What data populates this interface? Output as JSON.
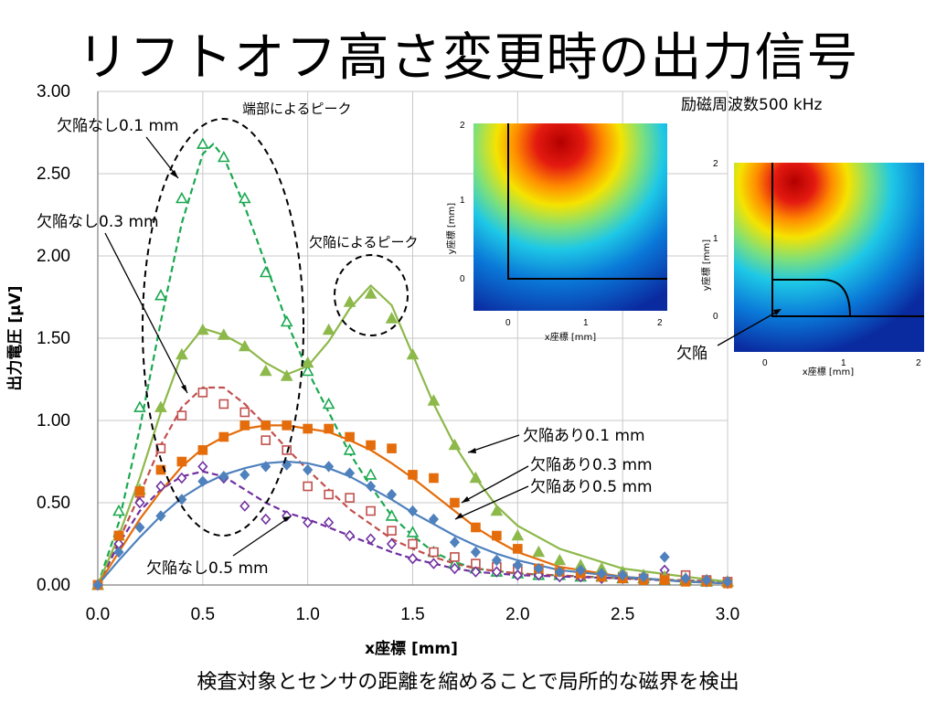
{
  "title": "リフトオフ高さ変更時の出力信号",
  "caption": "検査対象とセンサの距離を縮めることで局所的な磁界を検出",
  "freq_label": "励磁周波数500 kHz",
  "annotations": {
    "edge_peak": "端部によるピーク",
    "defect_peak": "欠陥によるピーク",
    "defect": "欠陥"
  },
  "insets": [
    {
      "xlabel": "x座標 [mm]",
      "ylabel": "y座標 [mm]",
      "xticks": [
        "0",
        "1",
        "2"
      ],
      "yticks": [
        "0",
        "1",
        "2"
      ],
      "defect": false
    },
    {
      "xlabel": "x座標 [mm]",
      "ylabel": "y座標 [mm]",
      "xticks": [
        "0",
        "1",
        "2"
      ],
      "yticks": [
        "0",
        "1",
        "2"
      ],
      "defect": true
    }
  ],
  "chart_data": {
    "type": "scatter",
    "xlabel": "x座標 [mm]",
    "ylabel": "出力電圧 [μV]",
    "xlim": [
      0,
      3
    ],
    "ylim": [
      0,
      3
    ],
    "xticks": [
      "0.0",
      "0.5",
      "1.0",
      "1.5",
      "2.0",
      "2.5",
      "3.0"
    ],
    "yticks": [
      "0.00",
      "0.50",
      "1.00",
      "1.50",
      "2.00",
      "2.50",
      "3.00"
    ],
    "grid": true,
    "series": [
      {
        "name": "欠陥なし0.1 mm",
        "marker": "triangle-open",
        "color": "#1aa84f",
        "dash": true,
        "x": [
          0,
          0.1,
          0.2,
          0.3,
          0.4,
          0.5,
          0.6,
          0.7,
          0.8,
          0.9,
          1.0,
          1.1,
          1.2,
          1.3,
          1.4,
          1.5,
          1.6,
          1.7,
          1.8,
          1.9,
          2.0,
          2.1,
          2.2,
          2.3,
          2.4,
          2.5,
          2.6,
          2.7,
          2.8,
          2.9,
          3.0
        ],
        "y": [
          0,
          0.45,
          1.08,
          1.76,
          2.35,
          2.68,
          2.6,
          2.35,
          1.9,
          1.6,
          1.3,
          1.1,
          0.82,
          0.67,
          0.42,
          0.32,
          0.2,
          0.13,
          0.1,
          0.08,
          0.07,
          0.06,
          0.06,
          0.05,
          0.05,
          0.04,
          0.04,
          0.03,
          0.03,
          0.02,
          0.02
        ],
        "fit": [
          [
            0,
            0
          ],
          [
            0.1,
            0.38
          ],
          [
            0.2,
            0.95
          ],
          [
            0.3,
            1.6
          ],
          [
            0.4,
            2.2
          ],
          [
            0.5,
            2.62
          ],
          [
            0.55,
            2.68
          ],
          [
            0.6,
            2.6
          ],
          [
            0.7,
            2.3
          ],
          [
            0.8,
            1.95
          ],
          [
            0.9,
            1.6
          ],
          [
            1.0,
            1.3
          ],
          [
            1.1,
            1.05
          ],
          [
            1.2,
            0.8
          ],
          [
            1.3,
            0.6
          ],
          [
            1.4,
            0.42
          ],
          [
            1.5,
            0.3
          ],
          [
            1.6,
            0.2
          ],
          [
            1.7,
            0.14
          ],
          [
            1.8,
            0.1
          ],
          [
            2.0,
            0.07
          ],
          [
            2.5,
            0.04
          ],
          [
            3.0,
            0.02
          ]
        ]
      },
      {
        "name": "欠陥なし0.3 mm",
        "marker": "square-open",
        "color": "#c0504d",
        "dash": true,
        "x": [
          0,
          0.1,
          0.2,
          0.3,
          0.4,
          0.5,
          0.6,
          0.7,
          0.8,
          0.9,
          1.0,
          1.1,
          1.2,
          1.3,
          1.4,
          1.5,
          1.6,
          1.7,
          1.8,
          1.9,
          2.0,
          2.1,
          2.2,
          2.3,
          2.4,
          2.5,
          2.6,
          2.7,
          2.8,
          2.9,
          3.0
        ],
        "y": [
          0,
          0.3,
          0.56,
          0.83,
          1.03,
          1.17,
          1.1,
          1.05,
          0.88,
          0.82,
          0.6,
          0.55,
          0.53,
          0.45,
          0.33,
          0.25,
          0.2,
          0.17,
          0.13,
          0.11,
          0.1,
          0.08,
          0.07,
          0.06,
          0.05,
          0.05,
          0.04,
          0.04,
          0.06,
          0.03,
          0.02
        ],
        "fit": [
          [
            0,
            0
          ],
          [
            0.1,
            0.27
          ],
          [
            0.2,
            0.55
          ],
          [
            0.3,
            0.85
          ],
          [
            0.4,
            1.08
          ],
          [
            0.5,
            1.2
          ],
          [
            0.6,
            1.2
          ],
          [
            0.7,
            1.1
          ],
          [
            0.8,
            0.97
          ],
          [
            0.9,
            0.83
          ],
          [
            1.0,
            0.7
          ],
          [
            1.1,
            0.58
          ],
          [
            1.2,
            0.46
          ],
          [
            1.3,
            0.37
          ],
          [
            1.4,
            0.28
          ],
          [
            1.5,
            0.22
          ],
          [
            1.6,
            0.17
          ],
          [
            1.7,
            0.13
          ],
          [
            1.8,
            0.1
          ],
          [
            2.0,
            0.07
          ],
          [
            2.5,
            0.04
          ],
          [
            3.0,
            0.02
          ]
        ]
      },
      {
        "name": "欠陥なし0.5 mm",
        "marker": "diamond-open",
        "color": "#7030a0",
        "dash": true,
        "x": [
          0,
          0.1,
          0.2,
          0.3,
          0.4,
          0.5,
          0.6,
          0.7,
          0.8,
          0.9,
          1.0,
          1.1,
          1.2,
          1.3,
          1.4,
          1.5,
          1.6,
          1.7,
          1.8,
          1.9,
          2.0,
          2.1,
          2.2,
          2.3,
          2.4,
          2.5,
          2.6,
          2.7,
          2.8,
          2.9,
          3.0
        ],
        "y": [
          0,
          0.25,
          0.5,
          0.6,
          0.65,
          0.72,
          0.65,
          0.48,
          0.4,
          0.42,
          0.38,
          0.38,
          0.3,
          0.28,
          0.25,
          0.16,
          0.13,
          0.1,
          0.08,
          0.08,
          0.06,
          0.06,
          0.05,
          0.05,
          0.04,
          0.04,
          0.04,
          0.09,
          0.03,
          0.02,
          0.01
        ],
        "fit": [
          [
            0,
            0
          ],
          [
            0.1,
            0.25
          ],
          [
            0.2,
            0.45
          ],
          [
            0.3,
            0.58
          ],
          [
            0.4,
            0.66
          ],
          [
            0.5,
            0.69
          ],
          [
            0.6,
            0.66
          ],
          [
            0.7,
            0.58
          ],
          [
            0.8,
            0.5
          ],
          [
            0.9,
            0.44
          ],
          [
            1.0,
            0.4
          ],
          [
            1.1,
            0.35
          ],
          [
            1.2,
            0.3
          ],
          [
            1.3,
            0.25
          ],
          [
            1.4,
            0.2
          ],
          [
            1.5,
            0.16
          ],
          [
            1.6,
            0.13
          ],
          [
            1.7,
            0.1
          ],
          [
            1.8,
            0.08
          ],
          [
            2.0,
            0.06
          ],
          [
            2.5,
            0.04
          ],
          [
            3.0,
            0.01
          ]
        ]
      },
      {
        "name": "欠陥あり0.1 mm",
        "marker": "triangle-filled",
        "color": "#8db84a",
        "dash": false,
        "x": [
          0,
          0.1,
          0.2,
          0.3,
          0.4,
          0.5,
          0.6,
          0.7,
          0.8,
          0.9,
          1.0,
          1.1,
          1.2,
          1.3,
          1.4,
          1.5,
          1.6,
          1.7,
          1.8,
          1.9,
          2.0,
          2.1,
          2.2,
          2.3,
          2.4,
          2.5,
          2.6,
          2.7,
          2.8,
          2.9,
          3.0
        ],
        "y": [
          0,
          0.3,
          0.58,
          1.08,
          1.4,
          1.55,
          1.52,
          1.45,
          1.3,
          1.27,
          1.35,
          1.55,
          1.72,
          1.77,
          1.62,
          1.4,
          1.12,
          0.85,
          0.65,
          0.45,
          0.3,
          0.2,
          0.15,
          0.12,
          0.1,
          0.08,
          0.06,
          0.05,
          0.04,
          0.03,
          0.02
        ],
        "fit": [
          [
            0,
            0
          ],
          [
            0.1,
            0.3
          ],
          [
            0.2,
            0.65
          ],
          [
            0.3,
            1.05
          ],
          [
            0.4,
            1.4
          ],
          [
            0.5,
            1.56
          ],
          [
            0.6,
            1.52
          ],
          [
            0.7,
            1.45
          ],
          [
            0.8,
            1.35
          ],
          [
            0.9,
            1.28
          ],
          [
            1.0,
            1.33
          ],
          [
            1.1,
            1.48
          ],
          [
            1.2,
            1.68
          ],
          [
            1.3,
            1.82
          ],
          [
            1.4,
            1.7
          ],
          [
            1.5,
            1.4
          ],
          [
            1.6,
            1.1
          ],
          [
            1.7,
            0.85
          ],
          [
            1.8,
            0.65
          ],
          [
            1.9,
            0.48
          ],
          [
            2.0,
            0.36
          ],
          [
            2.2,
            0.22
          ],
          [
            2.5,
            0.1
          ],
          [
            2.8,
            0.05
          ],
          [
            3.0,
            0.02
          ]
        ]
      },
      {
        "name": "欠陥あり0.3 mm",
        "marker": "square-filled",
        "color": "#e46c0a",
        "dash": false,
        "x": [
          0,
          0.1,
          0.2,
          0.3,
          0.4,
          0.5,
          0.6,
          0.7,
          0.8,
          0.9,
          1.0,
          1.1,
          1.2,
          1.3,
          1.4,
          1.5,
          1.6,
          1.7,
          1.8,
          1.9,
          2.0,
          2.1,
          2.2,
          2.3,
          2.4,
          2.5,
          2.6,
          2.7,
          2.8,
          2.9,
          3.0
        ],
        "y": [
          0,
          0.3,
          0.57,
          0.7,
          0.75,
          0.82,
          0.9,
          0.97,
          0.97,
          0.97,
          0.95,
          0.95,
          0.9,
          0.85,
          0.83,
          0.67,
          0.65,
          0.5,
          0.35,
          0.3,
          0.22,
          0.1,
          0.08,
          0.07,
          0.05,
          0.04,
          0.03,
          0.03,
          0.02,
          0.02,
          0.01
        ],
        "fit": [
          [
            0,
            0
          ],
          [
            0.1,
            0.2
          ],
          [
            0.2,
            0.4
          ],
          [
            0.3,
            0.57
          ],
          [
            0.4,
            0.72
          ],
          [
            0.5,
            0.83
          ],
          [
            0.6,
            0.9
          ],
          [
            0.7,
            0.95
          ],
          [
            0.8,
            0.97
          ],
          [
            0.9,
            0.97
          ],
          [
            1.0,
            0.95
          ],
          [
            1.1,
            0.93
          ],
          [
            1.2,
            0.88
          ],
          [
            1.3,
            0.82
          ],
          [
            1.4,
            0.74
          ],
          [
            1.5,
            0.65
          ],
          [
            1.6,
            0.55
          ],
          [
            1.7,
            0.45
          ],
          [
            1.8,
            0.35
          ],
          [
            1.9,
            0.27
          ],
          [
            2.0,
            0.2
          ],
          [
            2.2,
            0.11
          ],
          [
            2.5,
            0.05
          ],
          [
            2.8,
            0.02
          ],
          [
            3.0,
            0.01
          ]
        ]
      },
      {
        "name": "欠陥あり0.5 mm",
        "marker": "diamond-filled",
        "color": "#4f81bd",
        "dash": false,
        "x": [
          0,
          0.1,
          0.2,
          0.3,
          0.4,
          0.5,
          0.6,
          0.7,
          0.8,
          0.9,
          1.0,
          1.1,
          1.2,
          1.3,
          1.4,
          1.5,
          1.6,
          1.7,
          1.8,
          1.9,
          2.0,
          2.1,
          2.2,
          2.3,
          2.4,
          2.5,
          2.6,
          2.7,
          2.8,
          2.9,
          3.0
        ],
        "y": [
          0,
          0.2,
          0.35,
          0.42,
          0.52,
          0.63,
          0.66,
          0.67,
          0.72,
          0.73,
          0.7,
          0.72,
          0.68,
          0.6,
          0.55,
          0.45,
          0.4,
          0.26,
          0.2,
          0.15,
          0.12,
          0.1,
          0.08,
          0.09,
          0.07,
          0.06,
          0.05,
          0.17,
          0.04,
          0.03,
          0.02
        ],
        "fit": [
          [
            0,
            0
          ],
          [
            0.1,
            0.15
          ],
          [
            0.2,
            0.29
          ],
          [
            0.3,
            0.42
          ],
          [
            0.4,
            0.53
          ],
          [
            0.5,
            0.61
          ],
          [
            0.6,
            0.67
          ],
          [
            0.7,
            0.71
          ],
          [
            0.8,
            0.74
          ],
          [
            0.9,
            0.75
          ],
          [
            1.0,
            0.74
          ],
          [
            1.1,
            0.71
          ],
          [
            1.2,
            0.66
          ],
          [
            1.3,
            0.59
          ],
          [
            1.4,
            0.52
          ],
          [
            1.5,
            0.44
          ],
          [
            1.6,
            0.37
          ],
          [
            1.7,
            0.3
          ],
          [
            1.8,
            0.24
          ],
          [
            1.9,
            0.19
          ],
          [
            2.0,
            0.15
          ],
          [
            2.2,
            0.09
          ],
          [
            2.5,
            0.05
          ],
          [
            2.8,
            0.02
          ],
          [
            3.0,
            0.01
          ]
        ]
      }
    ]
  }
}
